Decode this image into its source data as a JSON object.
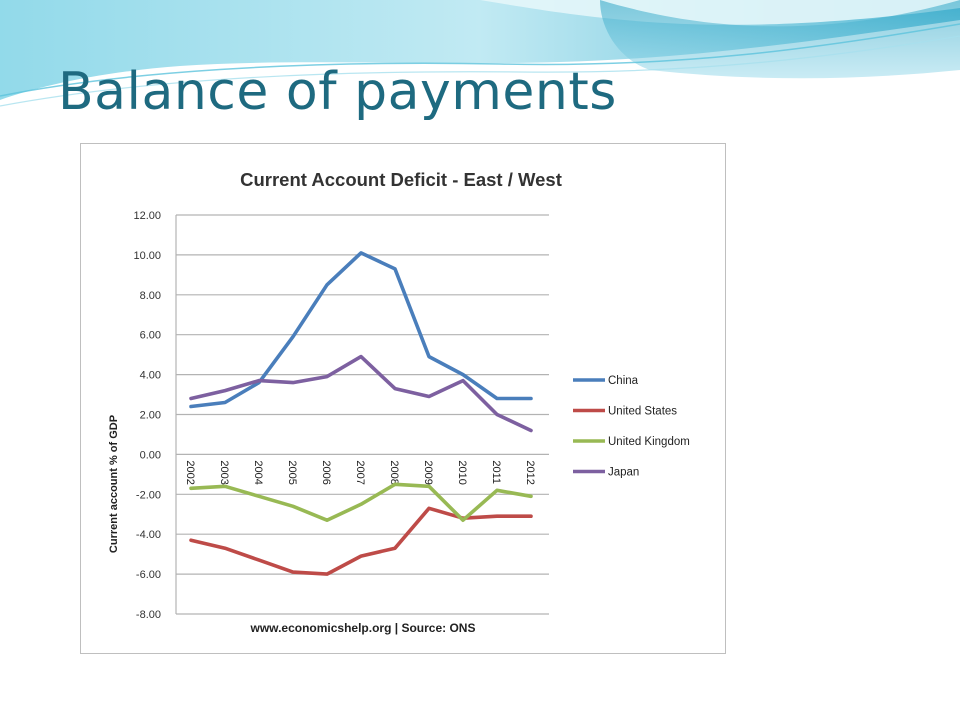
{
  "slide": {
    "title": "Balance of payments",
    "theme_colors": {
      "title": "#1e6a80",
      "wave_light": "#cdeef6",
      "wave_mid": "#7fd3e6",
      "wave_dark": "#2aa3c4"
    }
  },
  "chart_data": {
    "type": "line",
    "title": "Current Account Deficit - East / West",
    "xlabel": "",
    "ylabel": "Current account % of GDP",
    "source": "www.economicshelp.org | Source: ONS",
    "categories": [
      "2002",
      "2003",
      "2004",
      "2005",
      "2006",
      "2007",
      "2008",
      "2009",
      "2010",
      "2011",
      "2012"
    ],
    "ylim": [
      -8,
      12
    ],
    "yticks": [
      "12.00",
      "10.00",
      "8.00",
      "6.00",
      "4.00",
      "2.00",
      "0.00",
      "-2.00",
      "-4.00",
      "-6.00",
      "-8.00"
    ],
    "ytick_values": [
      12,
      10,
      8,
      6,
      4,
      2,
      0,
      -2,
      -4,
      -6,
      -8
    ],
    "grid": "horizontal",
    "legend_position": "right",
    "series": [
      {
        "name": "China",
        "color": "#4a7ebb",
        "values": [
          2.4,
          2.6,
          3.6,
          5.9,
          8.5,
          10.1,
          9.3,
          4.9,
          4.0,
          2.8,
          2.8
        ]
      },
      {
        "name": "United States",
        "color": "#be4b48",
        "values": [
          -4.3,
          -4.7,
          -5.3,
          -5.9,
          -6.0,
          -5.1,
          -4.7,
          -2.7,
          -3.2,
          -3.1,
          -3.1
        ]
      },
      {
        "name": "United Kingdom",
        "color": "#98b954",
        "values": [
          -1.7,
          -1.6,
          -2.1,
          -2.6,
          -3.3,
          -2.5,
          -1.5,
          -1.6,
          -3.3,
          -1.8,
          -2.1
        ]
      },
      {
        "name": "Japan",
        "color": "#7d60a0",
        "values": [
          2.8,
          3.2,
          3.7,
          3.6,
          3.9,
          4.9,
          3.3,
          2.9,
          3.7,
          2.0,
          1.2
        ]
      }
    ]
  }
}
